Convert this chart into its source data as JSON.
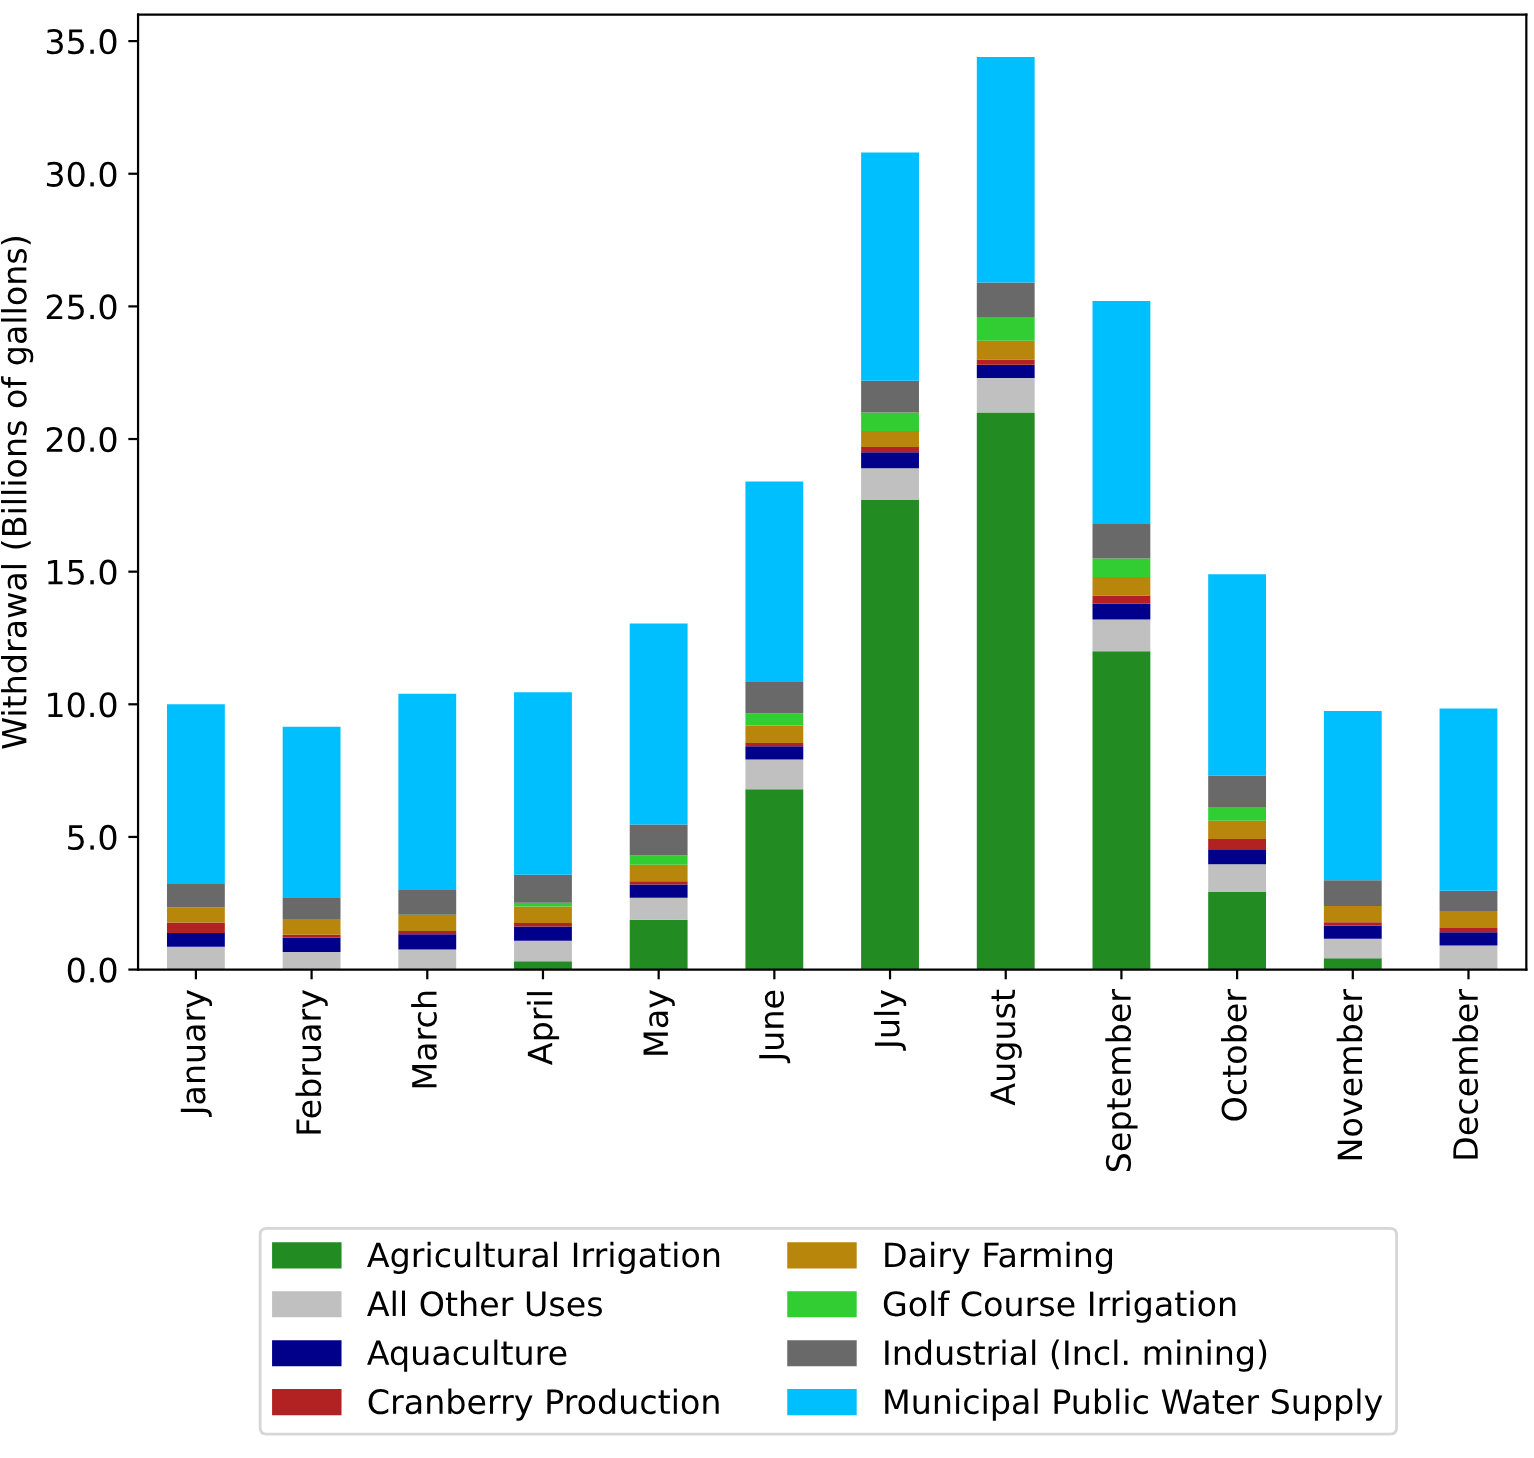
{
  "chart_data": {
    "type": "bar",
    "stacked": true,
    "ylabel": "Withdrawal (Billions of gallons)",
    "categories": [
      "January",
      "February",
      "March",
      "April",
      "May",
      "June",
      "July",
      "August",
      "September",
      "October",
      "November",
      "December"
    ],
    "series": [
      {
        "name": "Agricultural Irrigation",
        "color": "#228b22",
        "values": [
          0,
          0,
          0,
          0.31,
          1.88,
          6.8,
          17.7,
          21.0,
          12.0,
          2.92,
          0.43,
          0
        ]
      },
      {
        "name": "All Other Uses",
        "color": "#c0c0c0",
        "values": [
          0.86,
          0.66,
          0.76,
          0.78,
          0.83,
          1.12,
          1.2,
          1.3,
          1.2,
          1.05,
          0.73,
          0.91
        ]
      },
      {
        "name": "Aquaculture",
        "color": "#00008b",
        "values": [
          0.52,
          0.55,
          0.57,
          0.53,
          0.5,
          0.5,
          0.6,
          0.5,
          0.6,
          0.57,
          0.5,
          0.5
        ]
      },
      {
        "name": "Cranberry Production",
        "color": "#b22222",
        "values": [
          0.39,
          0.1,
          0.12,
          0.14,
          0.12,
          0.12,
          0.2,
          0.2,
          0.3,
          0.38,
          0.12,
          0.16
        ]
      },
      {
        "name": "Dairy Farming",
        "color": "#b8860b",
        "values": [
          0.58,
          0.57,
          0.62,
          0.62,
          0.62,
          0.66,
          0.6,
          0.7,
          0.7,
          0.69,
          0.62,
          0.64
        ]
      },
      {
        "name": "Golf Course Irrigation",
        "color": "#32cd32",
        "values": [
          0,
          0,
          0,
          0.14,
          0.35,
          0.45,
          0.7,
          0.9,
          0.7,
          0.52,
          0,
          0
        ]
      },
      {
        "name": "Industrial (Incl. mining)",
        "color": "#696969",
        "values": [
          0.88,
          0.85,
          0.93,
          1.05,
          1.17,
          1.19,
          1.2,
          1.3,
          1.3,
          1.19,
          0.97,
          0.76
        ]
      },
      {
        "name": "Municipal Public Water Supply",
        "color": "#00bfff",
        "values": [
          6.77,
          6.42,
          7.4,
          6.88,
          7.58,
          7.56,
          8.6,
          8.5,
          8.4,
          7.58,
          6.38,
          6.87
        ]
      }
    ],
    "ylim": [
      0,
      36
    ],
    "yticks": [
      {
        "value": 0,
        "label": "0.0"
      },
      {
        "value": 5,
        "label": "5.0"
      },
      {
        "value": 10,
        "label": "10.0"
      },
      {
        "value": 15,
        "label": "15.0"
      },
      {
        "value": 20,
        "label": "20.0"
      },
      {
        "value": 25,
        "label": "25.0"
      },
      {
        "value": 30,
        "label": "30.0"
      },
      {
        "value": 35,
        "label": "35.0"
      }
    ],
    "grid": false,
    "legend": "bottom"
  }
}
